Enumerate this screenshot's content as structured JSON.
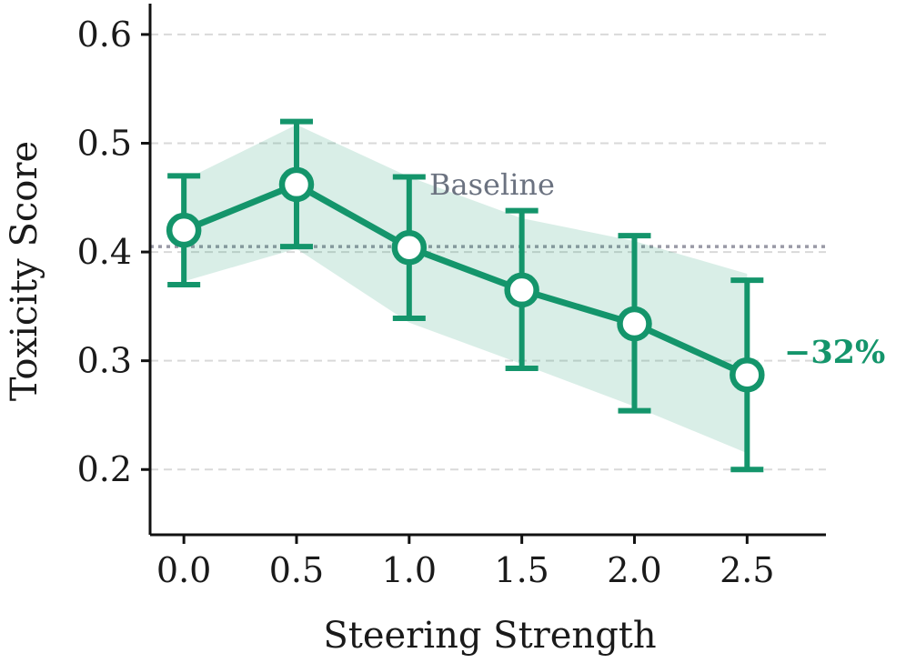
{
  "chart_data": {
    "type": "line",
    "title": "",
    "xlabel": "Steering Strength",
    "ylabel": "Toxicity Score",
    "x": [
      0.0,
      0.5,
      1.0,
      1.5,
      2.0,
      2.5
    ],
    "x_tick_labels": [
      "0.0",
      "0.5",
      "1.0",
      "1.5",
      "2.0",
      "2.5"
    ],
    "y_tick_values": [
      0.2,
      0.3,
      0.4,
      0.5,
      0.6
    ],
    "y_tick_labels": [
      "0.2",
      "0.3",
      "0.4",
      "0.5",
      "0.6"
    ],
    "xlim": [
      -0.15,
      2.85
    ],
    "ylim": [
      0.14,
      0.625
    ],
    "grid": "horizontal dashed",
    "series": [
      {
        "name": "Toxicity",
        "values": [
          0.42,
          0.462,
          0.404,
          0.365,
          0.334,
          0.287
        ],
        "err_low": [
          0.37,
          0.405,
          0.339,
          0.293,
          0.254,
          0.2
        ],
        "err_high": [
          0.47,
          0.52,
          0.469,
          0.438,
          0.415,
          0.374
        ],
        "band_low": [
          0.373,
          0.403,
          0.335,
          0.297,
          0.258,
          0.215
        ],
        "band_high": [
          0.466,
          0.517,
          0.469,
          0.431,
          0.41,
          0.38
        ],
        "color": "#14956b"
      }
    ],
    "baseline": {
      "value": 0.405,
      "label": "Baseline",
      "color": "#9a9aa6",
      "label_color": "#6b7280"
    },
    "annotation": {
      "text": "−32%",
      "color": "#14956b"
    }
  }
}
